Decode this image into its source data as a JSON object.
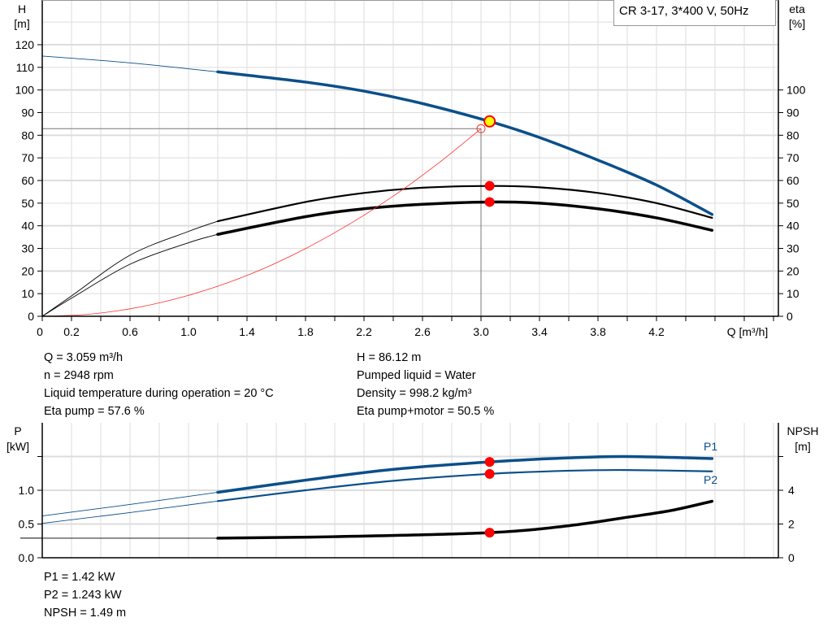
{
  "title": "CR 3-17, 3*400 V, 50Hz",
  "colors": {
    "head": "#0b4f8a",
    "power": "#0b4f8a",
    "efficiency": "#000000",
    "npsh": "#000000",
    "system": "#ff3030",
    "duty_point": "#ff0000",
    "duty_point_fill": "#ffff00",
    "grid": "#dddddd"
  },
  "chart_data": [
    {
      "type": "line",
      "xlabel": "Q [m³/h]",
      "ylabel_left": "H",
      "ylabel_left_unit": "[m]",
      "ylabel_right": "eta",
      "ylabel_right_unit": "[%]",
      "xlim": [
        0,
        5.04
      ],
      "ylim": [
        0,
        140
      ],
      "grid": true,
      "x_ticks": [
        "0",
        "0.2",
        "0.6",
        "1.0",
        "1.4",
        "1.8",
        "2.2",
        "2.6",
        "3.0",
        "3.4",
        "3.8",
        "4.2"
      ],
      "y_ticks_left": [
        "0",
        "10",
        "20",
        "30",
        "40",
        "50",
        "60",
        "70",
        "80",
        "90",
        "100",
        "110",
        "120"
      ],
      "y_ticks_right": [
        "0",
        "10",
        "20",
        "30",
        "40",
        "50",
        "60",
        "70",
        "80",
        "90",
        "100"
      ],
      "series": [
        {
          "key": "H",
          "axis": "left",
          "color": "#0b4f8a",
          "width": 3.5,
          "points": [
            [
              0,
              115
            ],
            [
              0.6,
              112
            ],
            [
              1.2,
              108
            ],
            [
              1.8,
              103.5
            ],
            [
              2.2,
              99.5
            ],
            [
              2.6,
              94
            ],
            [
              3.059,
              86.1
            ],
            [
              3.4,
              79
            ],
            [
              3.8,
              69
            ],
            [
              4.2,
              58
            ],
            [
              4.58,
              45
            ]
          ]
        },
        {
          "key": "eta_pump",
          "axis": "right",
          "color": "#000000",
          "width": 2.2,
          "points": [
            [
              0,
              0
            ],
            [
              0.2,
              9
            ],
            [
              0.6,
              27
            ],
            [
              1.0,
              37.5
            ],
            [
              1.2,
              42
            ],
            [
              1.8,
              50.5
            ],
            [
              2.2,
              54.5
            ],
            [
              2.6,
              56.8
            ],
            [
              3.059,
              57.6
            ],
            [
              3.4,
              57
            ],
            [
              3.8,
              54.5
            ],
            [
              4.2,
              50
            ],
            [
              4.58,
              43.5
            ]
          ]
        },
        {
          "key": "eta_total",
          "axis": "right",
          "color": "#000000",
          "width": 3.5,
          "points": [
            [
              0,
              0
            ],
            [
              0.2,
              8
            ],
            [
              0.6,
              23
            ],
            [
              1.0,
              32.5
            ],
            [
              1.2,
              36.2
            ],
            [
              1.8,
              44
            ],
            [
              2.2,
              47.5
            ],
            [
              2.6,
              49.5
            ],
            [
              3.059,
              50.5
            ],
            [
              3.4,
              50
            ],
            [
              3.8,
              47.5
            ],
            [
              4.2,
              43.5
            ],
            [
              4.58,
              38
            ]
          ]
        },
        {
          "key": "system",
          "axis": "left",
          "color": "#ff3030",
          "width": 0.8,
          "thin_only": true,
          "points": [
            [
              0,
              0
            ],
            [
              0.3,
              0.8
            ],
            [
              0.6,
              3.3
            ],
            [
              0.9,
              7.5
            ],
            [
              1.2,
              13.3
            ],
            [
              1.5,
              20.7
            ],
            [
              1.8,
              29.9
            ],
            [
              2.1,
              40.7
            ],
            [
              2.4,
              53.1
            ],
            [
              2.7,
              67.2
            ],
            [
              3.0,
              82.9
            ]
          ]
        }
      ],
      "duty_point": {
        "Q": 3.059,
        "H": 86.12,
        "eta_pump": 57.6,
        "eta_total": 50.5
      },
      "requested_point": {
        "Q": 3.0,
        "H": 82.9
      }
    },
    {
      "type": "line",
      "ylabel_left": "P",
      "ylabel_left_unit": "[kW]",
      "ylabel_right": "NPSH",
      "ylabel_right_unit": "[m]",
      "xlim": [
        0,
        5.04
      ],
      "ylim_left": [
        0,
        2.0
      ],
      "ylim_right": [
        0,
        8
      ],
      "grid": true,
      "y_ticks_left": [
        "0.0",
        "0.5",
        "1.0"
      ],
      "y_ticks_right": [
        "0",
        "2",
        "4"
      ],
      "series": [
        {
          "key": "P1",
          "name": "P1",
          "axis": "left",
          "color": "#0b4f8a",
          "width": 3.5,
          "points": [
            [
              0,
              0.62
            ],
            [
              0.6,
              0.79
            ],
            [
              1.2,
              0.97
            ],
            [
              1.8,
              1.15
            ],
            [
              2.4,
              1.31
            ],
            [
              3.059,
              1.42
            ],
            [
              3.6,
              1.48
            ],
            [
              4.0,
              1.5
            ],
            [
              4.58,
              1.47
            ]
          ]
        },
        {
          "key": "P2",
          "name": "P2",
          "axis": "left",
          "color": "#0b4f8a",
          "width": 2.2,
          "points": [
            [
              0,
              0.51
            ],
            [
              0.6,
              0.67
            ],
            [
              1.2,
              0.84
            ],
            [
              1.8,
              1.0
            ],
            [
              2.4,
              1.14
            ],
            [
              3.059,
              1.243
            ],
            [
              3.6,
              1.29
            ],
            [
              4.0,
              1.3
            ],
            [
              4.58,
              1.28
            ]
          ]
        },
        {
          "key": "NPSH",
          "axis": "right",
          "color": "#000000",
          "width": 3.5,
          "points": [
            [
              0,
              1.16
            ],
            [
              1.2,
              1.16
            ],
            [
              2.0,
              1.25
            ],
            [
              3.059,
              1.49
            ],
            [
              3.6,
              1.9
            ],
            [
              4.0,
              2.4
            ],
            [
              4.3,
              2.8
            ],
            [
              4.58,
              3.35
            ]
          ]
        }
      ],
      "duty_point": {
        "Q": 3.059,
        "P1": 1.42,
        "P2": 1.243,
        "NPSH": 1.49
      }
    }
  ],
  "info_left": [
    "Q = 3.059 m³/h",
    "n = 2948 rpm",
    "Liquid temperature during operation = 20 °C",
    "Eta pump = 57.6 %"
  ],
  "info_right": [
    "H = 86.12 m",
    "Pumped liquid = Water",
    "Density = 998.2 kg/m³",
    "Eta pump+motor = 50.5 %"
  ],
  "info_bottom": [
    "P1 = 1.42 kW",
    "P2 = 1.243 kW",
    "NPSH = 1.49 m"
  ]
}
